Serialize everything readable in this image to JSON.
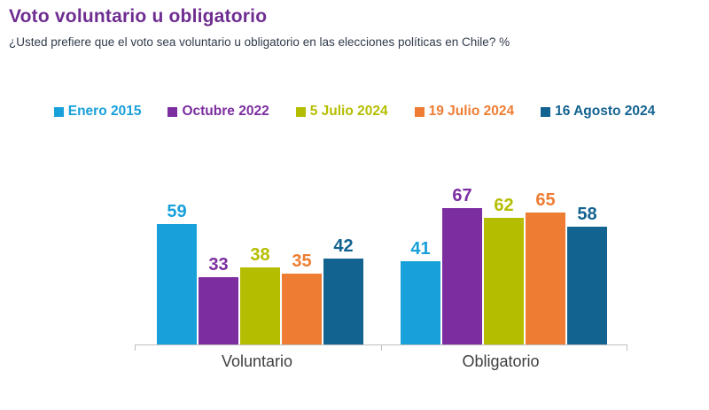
{
  "chart_data": {
    "type": "bar",
    "title": "Voto voluntario u obligatorio",
    "subtitle": "¿Usted prefiere que el voto sea voluntario u obligatorio en las elecciones políticas en Chile? %",
    "categories": [
      "Voluntario",
      "Obligatorio"
    ],
    "series": [
      {
        "name": "Enero 2015",
        "color": "#18A0DB",
        "values": [
          59,
          41
        ]
      },
      {
        "name": "Octubre 2022",
        "color": "#7C2EA0",
        "values": [
          33,
          67
        ]
      },
      {
        "name": "5 Julio 2024",
        "color": "#B5BD00",
        "values": [
          38,
          62
        ]
      },
      {
        "name": "19 Julio 2024",
        "color": "#EE7D33",
        "values": [
          35,
          65
        ]
      },
      {
        "name": "16 Agosto 2024",
        "color": "#136390",
        "values": [
          42,
          58
        ]
      }
    ],
    "unit": "%",
    "ylim": [
      0,
      80
    ],
    "grid": false,
    "legend_position": "top",
    "data_labels": true
  },
  "colors": {
    "title_text": "#6E2D91",
    "subtitle_text": "#303A4B",
    "axis": "#BFBFBF",
    "category_label": "#3F3F3F"
  }
}
